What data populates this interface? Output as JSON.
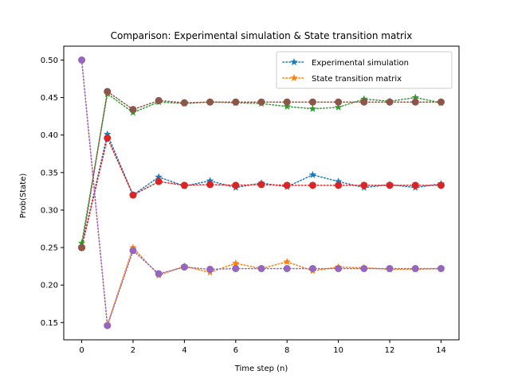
{
  "chart_data": {
    "type": "line",
    "title": "Comparison: Experimental simulation & State transition matrix",
    "xlabel": "Time step (n)",
    "ylabel": "Prob(State)",
    "xlim": [
      -0.7,
      14.7
    ],
    "ylim": [
      0.127,
      0.5185
    ],
    "xticks": [
      0,
      2,
      4,
      6,
      8,
      10,
      12,
      14
    ],
    "yticks": [
      0.15,
      0.2,
      0.25,
      0.3,
      0.35,
      0.4,
      0.45,
      0.5
    ],
    "grid": false,
    "legend_placement": "top-right",
    "x": [
      0,
      1,
      2,
      3,
      4,
      5,
      6,
      7,
      8,
      9,
      10,
      11,
      12,
      13,
      14
    ],
    "series": [
      {
        "name": "Experimental simulation",
        "group": "experimental",
        "state": 1,
        "color": "#1f77b4",
        "marker": "star",
        "values": [
          0.25,
          0.401,
          0.32,
          0.344,
          0.332,
          0.339,
          0.33,
          0.336,
          0.331,
          0.347,
          0.338,
          0.33,
          0.334,
          0.33,
          0.335
        ]
      },
      {
        "name": "State transition matrix",
        "group": "matrix",
        "state": 1,
        "color": "#ff7f0e",
        "marker": "star",
        "values": [
          0.5,
          0.147,
          0.25,
          0.213,
          0.225,
          0.217,
          0.229,
          0.222,
          0.231,
          0.219,
          0.224,
          0.223,
          0.221,
          0.221,
          0.222
        ]
      },
      {
        "group": "experimental",
        "state": 2,
        "color": "#2ca02c",
        "marker": "star",
        "values": [
          0.256,
          0.455,
          0.43,
          0.444,
          0.442,
          0.444,
          0.443,
          0.442,
          0.438,
          0.435,
          0.437,
          0.448,
          0.445,
          0.45,
          0.443
        ]
      },
      {
        "group": "matrix",
        "state": 2,
        "color": "#d62728",
        "marker": "circle",
        "values": [
          0.25,
          0.396,
          0.32,
          0.338,
          0.333,
          0.334,
          0.333,
          0.334,
          0.333,
          0.333,
          0.333,
          0.333,
          0.333,
          0.333,
          0.333
        ]
      },
      {
        "group": "matrix",
        "state": 3,
        "color": "#9467bd",
        "marker": "circle",
        "values": [
          0.5,
          0.146,
          0.246,
          0.215,
          0.224,
          0.221,
          0.222,
          0.222,
          0.222,
          0.222,
          0.222,
          0.222,
          0.222,
          0.222,
          0.222
        ]
      },
      {
        "group": "matrix",
        "state": 4,
        "color": "#8c564b",
        "marker": "circle",
        "values": [
          0.25,
          0.458,
          0.434,
          0.446,
          0.443,
          0.444,
          0.444,
          0.444,
          0.444,
          0.444,
          0.444,
          0.444,
          0.444,
          0.444,
          0.444
        ]
      }
    ],
    "legend": [
      {
        "label": "Experimental simulation",
        "color": "#1f77b4",
        "marker": "star"
      },
      {
        "label": "State transition matrix",
        "color": "#ff7f0e",
        "marker": "star"
      }
    ]
  }
}
